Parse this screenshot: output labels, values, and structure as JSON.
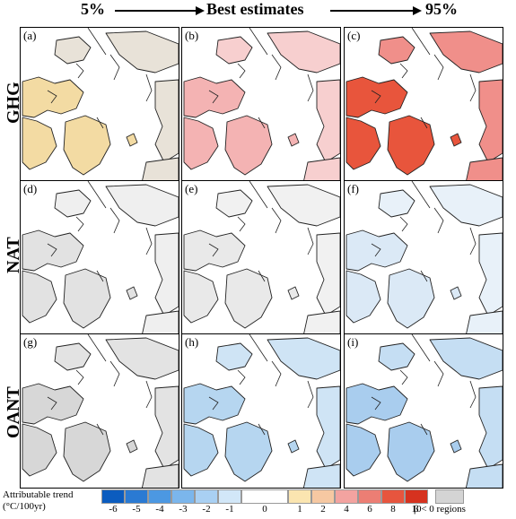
{
  "header": {
    "left": "5%",
    "middle": "Best estimates",
    "right": "95%"
  },
  "rows": [
    {
      "label": "GHG"
    },
    {
      "label": "NAT"
    },
    {
      "label": "OANT"
    }
  ],
  "panels": [
    {
      "label": "(a)",
      "fill": "#f3dba3",
      "land": "#e8e2d8",
      "level": 1
    },
    {
      "label": "(b)",
      "fill": "#f4b3b3",
      "land": "#f7cfcf",
      "level": 2
    },
    {
      "label": "(c)",
      "fill": "#e8553c",
      "land": "#f08f8a",
      "level": 4
    },
    {
      "label": "(d)",
      "fill": "#e2e2e2",
      "land": "#efefef",
      "level": 0
    },
    {
      "label": "(e)",
      "fill": "#e9e9e9",
      "land": "#f1f1f1",
      "level": 0
    },
    {
      "label": "(f)",
      "fill": "#dbe9f6",
      "land": "#e8f1f9",
      "level": -1
    },
    {
      "label": "(g)",
      "fill": "#d7d7d7",
      "land": "#e3e3e3",
      "level": 0
    },
    {
      "label": "(h)",
      "fill": "#b6d6f0",
      "land": "#cfe4f5",
      "level": -2
    },
    {
      "label": "(i)",
      "fill": "#a9cdee",
      "land": "#c5def3",
      "level": -2
    }
  ],
  "colorbar": {
    "title_line1": "Attributable trend",
    "title_line2": "(°C/100yr)",
    "neg_colors": [
      "#0b5cbf",
      "#2a7ad3",
      "#4c98e2",
      "#7bb6ec",
      "#a9d0f3",
      "#d2e7f8"
    ],
    "pos_colors": [
      "#fbe5b0",
      "#f6c8a2",
      "#f3a3a0",
      "#ec7e74",
      "#e7553e",
      "#d6321f"
    ],
    "neg_ticks": [
      "-6",
      "-5",
      "-4",
      "-3",
      "-2",
      "-1"
    ],
    "zero": "0",
    "pos_ticks": [
      "1",
      "2",
      "4",
      "6",
      "8",
      "10"
    ],
    "beta_color": "#d4d4d4",
    "beta_label": "β < 0 regions"
  }
}
